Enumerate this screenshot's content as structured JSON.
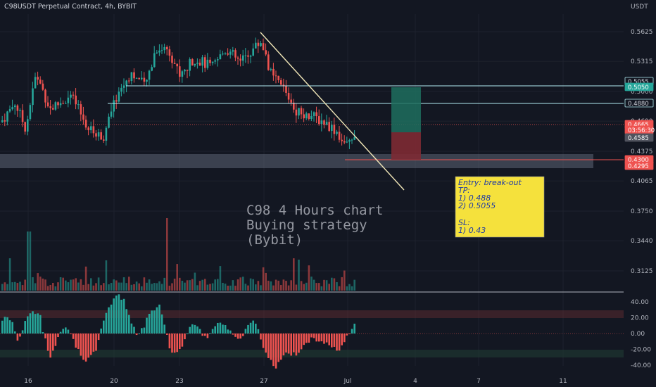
{
  "header": {
    "title": "C98USDT Perpetual Contract, 4h, BYBIT",
    "currency": "USDT"
  },
  "annotation": {
    "lines": [
      "C98 4 Hours chart",
      "Buying strategy",
      "(Bybit)"
    ]
  },
  "note": {
    "lines": [
      "Entry: break-out",
      "TP:",
      "1) 0.488",
      "2) 0.5055",
      "",
      "SL:",
      "1) 0.43"
    ]
  },
  "chart_data": {
    "type": "candlestick",
    "x_ticks": [
      "16",
      "20",
      "23",
      "27",
      "Jul",
      "4",
      "7",
      "11"
    ],
    "price_axis": {
      "ticks": [
        "0.5625",
        "0.5315",
        "0.5000",
        "0.4690",
        "0.4375",
        "0.4065",
        "0.3750",
        "0.3440",
        "0.3125"
      ],
      "tick_values": [
        0.5625,
        0.5315,
        0.5,
        0.469,
        0.4375,
        0.4065,
        0.375,
        0.344,
        0.3125
      ]
    },
    "oscillator_axis": {
      "ticks": [
        "40.00",
        "20.00",
        "0.00",
        "-20.00",
        "-40.00"
      ],
      "tick_values": [
        40,
        20,
        0,
        -20,
        -40
      ]
    },
    "price_tags": [
      {
        "label": "0.5055",
        "value": 0.5055,
        "style": "outline"
      },
      {
        "label": "0.5050",
        "value": 0.505,
        "style": "green"
      },
      {
        "label": "0.4880",
        "value": 0.488,
        "style": "outline"
      },
      {
        "label": "0.4665",
        "value": 0.4665,
        "style": "red"
      },
      {
        "label": "03:56:30",
        "value": 0.4635,
        "style": "red"
      },
      {
        "label": "0.4585",
        "value": 0.4585,
        "style": "gray"
      },
      {
        "label": "0.4300",
        "value": 0.43,
        "style": "red"
      },
      {
        "label": "0.4295",
        "value": 0.4295,
        "style": "red"
      }
    ],
    "levels": {
      "tp2": 0.5055,
      "tp1": 0.488,
      "entry": 0.4665,
      "sl": 0.43,
      "support_zone": [
        0.424,
        0.4335
      ],
      "trendline": [
        [
          0.56,
          0.41
        ]
      ]
    },
    "position_box": {
      "target": 0.5055,
      "entry": 0.465,
      "stop": 0.4295
    },
    "colors": {
      "up": "#26a69a",
      "down": "#ef5350",
      "note_bg": "#f5e13c",
      "line": "#b2ebf2"
    }
  }
}
